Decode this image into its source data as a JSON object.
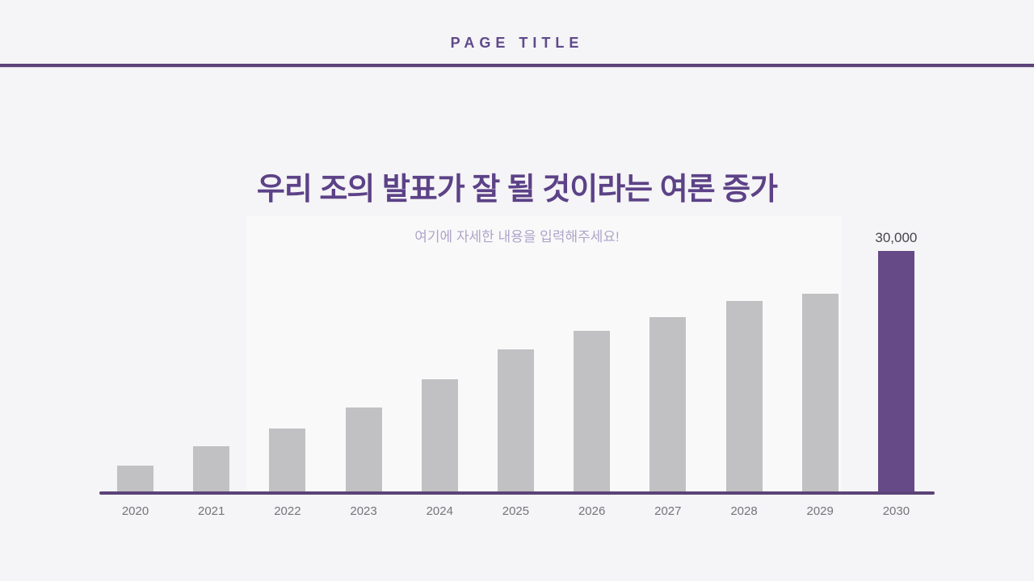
{
  "page": {
    "header": {
      "title": "PAGE TITLE"
    },
    "title": "우리 조의 발표가 잘 될 것이라는 여론 증가",
    "subtitle": "여기에 자세한 내용을 입력해주세요!"
  },
  "colors": {
    "background": "#f5f4f6",
    "header_text": "#5e4a8c",
    "divider": "#5b4377",
    "title_text": "#5c4287",
    "subtitle_text": "#6d5a9c",
    "bar_gray": "#c1c0c3",
    "bar_highlight_purple": "#654a87",
    "axis_line": "#5b4377",
    "tick_label": "#757479",
    "value_label": "#46454b"
  },
  "chart_data": {
    "type": "bar",
    "title": "",
    "xlabel": "",
    "ylabel": "",
    "categories": [
      "2020",
      "2021",
      "2022",
      "2023",
      "2024",
      "2025",
      "2026",
      "2027",
      "2028",
      "2029",
      "2030"
    ],
    "values": [
      3200,
      5600,
      7900,
      10500,
      14000,
      17700,
      20000,
      21700,
      23800,
      24700,
      30000
    ],
    "ylim": [
      0,
      30000
    ],
    "grid": false,
    "legend": false,
    "highlight_category": "2030",
    "value_labels": {
      "2030": "30,000"
    }
  }
}
